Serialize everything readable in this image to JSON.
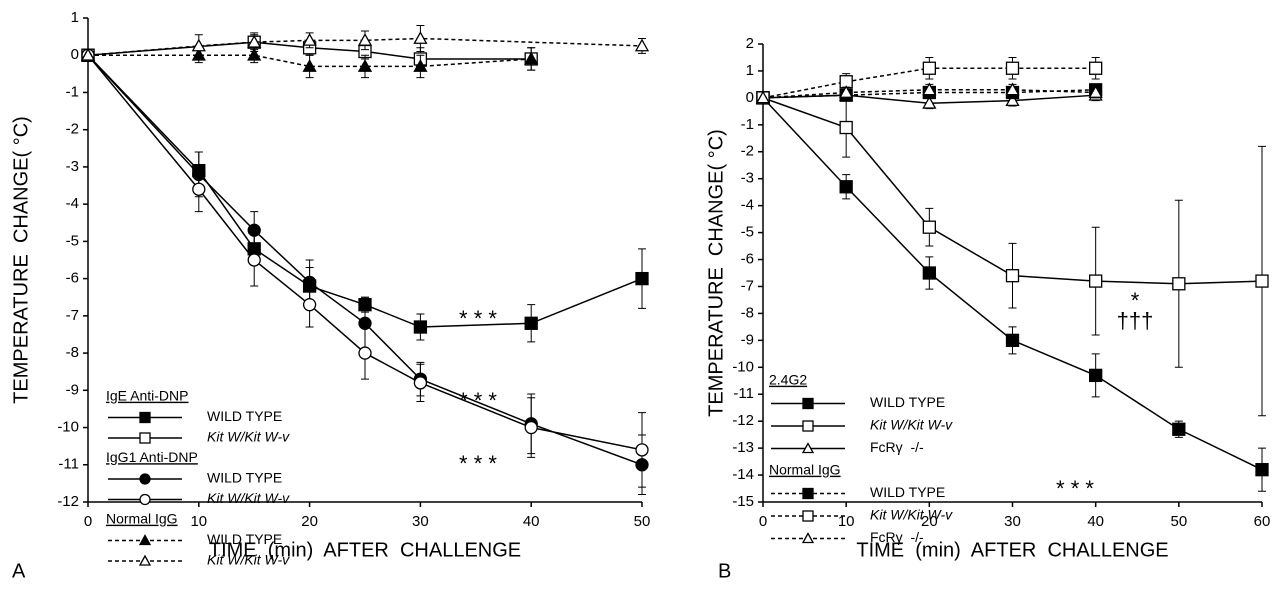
{
  "chart_data": [
    {
      "type": "line",
      "panel_label": "A",
      "xlabel": "TIME  (min)  AFTER  CHALLENGE",
      "ylabel": "TEMPERATURE  CHANGE( °C)",
      "xlim": [
        0,
        50
      ],
      "xticks": [
        0,
        10,
        20,
        30,
        40,
        50
      ],
      "ylim": [
        -12,
        1
      ],
      "yticks": [
        1,
        0,
        -1,
        -2,
        -3,
        -4,
        -5,
        -6,
        -7,
        -8,
        -9,
        -10,
        -11,
        -12
      ],
      "legend_titles": [
        "IgE Anti-DNP",
        "IgG1 Anti-DNP",
        "Normal IgG"
      ],
      "annotations": [
        "* * *",
        "* * *",
        "* * *"
      ],
      "series": [
        {
          "name": "WILD TYPE",
          "group": 0,
          "marker": "square",
          "filled": true,
          "dashed": false,
          "color": "#000000",
          "x": [
            0,
            10,
            15,
            20,
            25,
            30,
            40,
            50
          ],
          "values": [
            0,
            -3.1,
            -5.2,
            -6.2,
            -6.7,
            -7.3,
            -7.2,
            -6.0
          ],
          "errors": [
            null,
            0.5,
            0.4,
            0.5,
            0.2,
            0.35,
            0.5,
            0.8
          ]
        },
        {
          "name": "Kit W/Kit W-v",
          "group": 0,
          "marker": "square",
          "filled": false,
          "dashed": false,
          "color": "#000000",
          "x": [
            0,
            15,
            20,
            25,
            30,
            40
          ],
          "values": [
            0,
            0.35,
            0.2,
            0.1,
            -0.1,
            -0.1
          ],
          "errors": [
            null,
            0.25,
            0.2,
            0.2,
            0.3,
            0.3
          ]
        },
        {
          "name": "WILD TYPE",
          "group": 1,
          "marker": "circle",
          "filled": true,
          "dashed": false,
          "color": "#000000",
          "x": [
            0,
            10,
            15,
            20,
            25,
            30,
            40,
            50
          ],
          "values": [
            0,
            -3.2,
            -4.7,
            -6.1,
            -7.2,
            -8.7,
            -9.9,
            -11.0
          ],
          "errors": [
            null,
            0.6,
            0.5,
            0.6,
            0.7,
            0.45,
            0.8,
            0.8
          ]
        },
        {
          "name": "Kit W/Kit W-v",
          "group": 1,
          "marker": "circle",
          "filled": false,
          "dashed": false,
          "color": "#000000",
          "x": [
            0,
            10,
            15,
            20,
            25,
            30,
            40,
            50
          ],
          "values": [
            0,
            -3.6,
            -5.5,
            -6.7,
            -8.0,
            -8.8,
            -10.0,
            -10.6
          ],
          "errors": [
            null,
            0.6,
            0.7,
            0.6,
            0.7,
            0.5,
            0.8,
            1.0
          ]
        },
        {
          "name": "WILD TYPE",
          "group": 2,
          "marker": "triangle",
          "filled": true,
          "dashed": true,
          "color": "#000000",
          "x": [
            0,
            10,
            15,
            20,
            25,
            30,
            40
          ],
          "values": [
            0,
            0,
            0,
            -0.3,
            -0.3,
            -0.3,
            -0.1
          ],
          "errors": [
            null,
            0.2,
            0.2,
            0.3,
            0.3,
            0.3,
            0.3
          ]
        },
        {
          "name": "Kit W/Kit W-v",
          "group": 2,
          "marker": "triangle",
          "filled": false,
          "dashed": true,
          "color": "#000000",
          "x": [
            0,
            10,
            15,
            20,
            25,
            30,
            50
          ],
          "values": [
            0,
            0.25,
            0.35,
            0.4,
            0.4,
            0.45,
            0.25
          ],
          "errors": [
            null,
            0.3,
            0.2,
            0.2,
            0.25,
            0.35,
            0.2
          ]
        }
      ]
    },
    {
      "type": "line",
      "panel_label": "B",
      "xlabel": "TIME  (min)  AFTER  CHALLENGE",
      "ylabel": "TEMPERATURE  CHANGE( °C)",
      "xlim": [
        0,
        60
      ],
      "xticks": [
        0,
        10,
        20,
        30,
        40,
        50,
        60
      ],
      "ylim": [
        -15,
        2
      ],
      "yticks": [
        2,
        1,
        0,
        -1,
        -2,
        -3,
        -4,
        -5,
        -6,
        -7,
        -8,
        -9,
        -10,
        -11,
        -12,
        -13,
        -14,
        -15
      ],
      "legend_titles": [
        "2.4G2",
        "Normal IgG"
      ],
      "annotations": [
        "* * *",
        "*",
        "†††"
      ],
      "series": [
        {
          "name": "WILD TYPE",
          "group": 0,
          "marker": "square",
          "filled": true,
          "dashed": false,
          "color": "#000000",
          "x": [
            0,
            10,
            20,
            30,
            40,
            50,
            60
          ],
          "values": [
            0,
            -3.3,
            -6.5,
            -9.0,
            -10.3,
            -12.3,
            -13.8
          ],
          "errors": [
            null,
            0.45,
            0.6,
            0.5,
            0.8,
            0.3,
            0.8
          ]
        },
        {
          "name": "Kit W/Kit W-v",
          "group": 0,
          "marker": "square",
          "filled": false,
          "dashed": false,
          "color": "#000000",
          "x": [
            0,
            10,
            20,
            30,
            40,
            50,
            60
          ],
          "values": [
            0,
            -1.1,
            -4.8,
            -6.6,
            -6.8,
            -6.9,
            -6.8
          ],
          "errors": [
            null,
            1.1,
            0.7,
            1.2,
            2.0,
            3.1,
            5.0
          ]
        },
        {
          "name": "FcRγ  -/-",
          "group": 0,
          "marker": "triangle",
          "filled": false,
          "dashed": false,
          "color": "#000000",
          "x": [
            0,
            10,
            20,
            30,
            40
          ],
          "values": [
            0,
            0.1,
            -0.2,
            -0.1,
            0.1
          ],
          "errors": [
            null,
            0.2,
            0.2,
            0.2,
            0.2
          ]
        },
        {
          "name": "WILD TYPE",
          "group": 1,
          "marker": "square",
          "filled": true,
          "dashed": true,
          "color": "#000000",
          "x": [
            0,
            10,
            20,
            30,
            40
          ],
          "values": [
            0,
            0.1,
            0.2,
            0.2,
            0.3
          ],
          "errors": [
            null,
            0.2,
            0.2,
            0.2,
            0.2
          ]
        },
        {
          "name": "Kit W/Kit W-v",
          "group": 1,
          "marker": "square",
          "filled": false,
          "dashed": true,
          "color": "#000000",
          "x": [
            0,
            10,
            20,
            30,
            40
          ],
          "values": [
            0,
            0.6,
            1.1,
            1.1,
            1.1
          ],
          "errors": [
            null,
            0.3,
            0.4,
            0.4,
            0.4
          ]
        },
        {
          "name": "FcRγ  -/-",
          "group": 1,
          "marker": "triangle",
          "filled": false,
          "dashed": true,
          "color": "#000000",
          "x": [
            0,
            10,
            20,
            30,
            40
          ],
          "values": [
            0,
            0.2,
            0.3,
            0.3,
            0.2
          ],
          "errors": [
            null,
            0.2,
            0.2,
            0.2,
            0.2
          ]
        }
      ]
    }
  ]
}
